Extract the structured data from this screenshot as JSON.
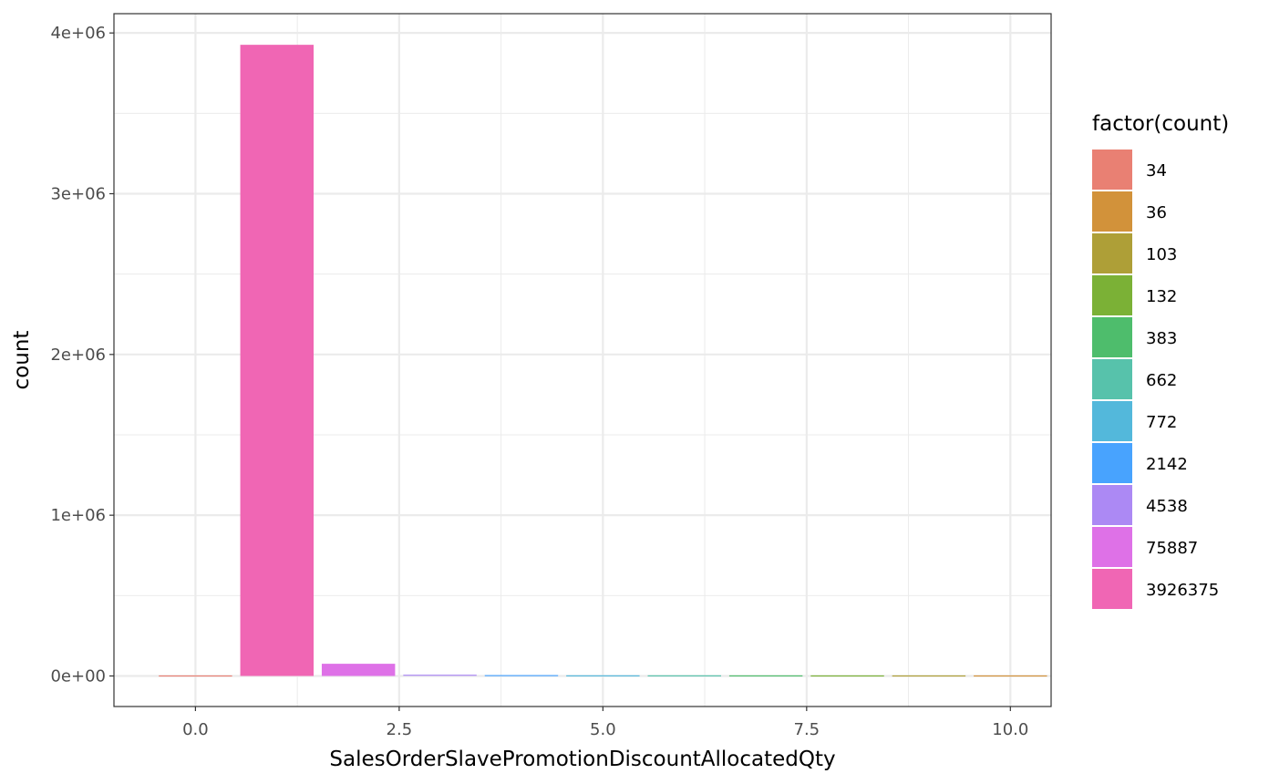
{
  "chart_data": {
    "type": "bar",
    "xlabel": "SalesOrderSlavePromotionDiscountAllocatedQty",
    "ylabel": "count",
    "xlim": [
      -1,
      10.5
    ],
    "ylim": [
      -190000,
      4120000
    ],
    "x_ticks": [
      0,
      2.5,
      5,
      7.5,
      10
    ],
    "x_tick_labels": [
      "0.0",
      "2.5",
      "5.0",
      "7.5",
      "10.0"
    ],
    "y_ticks": [
      0,
      1000000,
      2000000,
      3000000,
      4000000
    ],
    "y_tick_labels": [
      "0e+00",
      "1e+06",
      "2e+06",
      "3e+06",
      "4e+06"
    ],
    "grid": true,
    "legend": {
      "title": "factor(count)",
      "position": "right",
      "entries": [
        "34",
        "36",
        "103",
        "132",
        "383",
        "662",
        "772",
        "2142",
        "4538",
        "75887",
        "3926375"
      ]
    },
    "bars": [
      {
        "x": 1,
        "value": 3926375,
        "group": "3926375",
        "color": "#F066B4"
      },
      {
        "x": 2,
        "value": 75887,
        "group": "75887",
        "color": "#DE71E7"
      },
      {
        "x": 3,
        "value": 4538,
        "group": "4538",
        "color": "#AC89F4"
      },
      {
        "x": 4,
        "value": 2142,
        "group": "2142",
        "color": "#48A3FE"
      },
      {
        "x": 5,
        "value": 772,
        "group": "772",
        "color": "#53B8DB"
      },
      {
        "x": 6,
        "value": 662,
        "group": "662",
        "color": "#57C2AB"
      },
      {
        "x": 7,
        "value": 383,
        "group": "383",
        "color": "#4EBD6C"
      },
      {
        "x": 8,
        "value": 132,
        "group": "132",
        "color": "#7BB136"
      },
      {
        "x": 9,
        "value": 103,
        "group": "103",
        "color": "#AE9F37"
      },
      {
        "x": 10,
        "value": 36,
        "group": "36",
        "color": "#D2923A"
      },
      {
        "x": 0,
        "value": 34,
        "group": "34",
        "color": "#E98073"
      }
    ],
    "legend_colors": [
      "#E98073",
      "#D2923A",
      "#AE9F37",
      "#7BB136",
      "#4EBD6C",
      "#57C2AB",
      "#53B8DB",
      "#48A3FE",
      "#AC89F4",
      "#DE71E7",
      "#F066B4"
    ]
  }
}
